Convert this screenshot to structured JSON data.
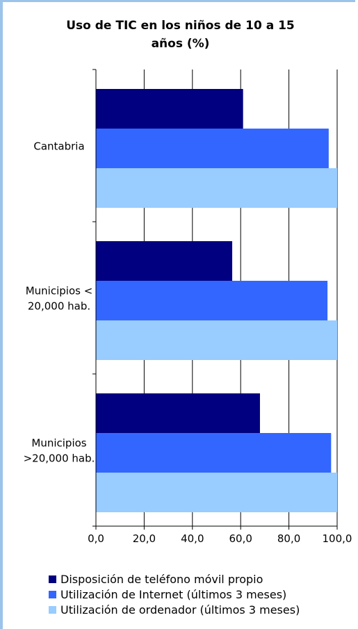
{
  "chart_data": {
    "type": "bar",
    "orientation": "horizontal",
    "title": "Uso de TIC en los niños de 10 a 15 años (%)",
    "title_lines": [
      "Uso de TIC en los niños de 10 a 15",
      "años (%)"
    ],
    "categories": [
      "Cantabria",
      "Municipios < 20,000 hab.",
      "Municipios >20,000 hab."
    ],
    "category_lines": [
      [
        "Cantabria"
      ],
      [
        "Municipios <",
        "20,000 hab."
      ],
      [
        "Municipios",
        ">20,000 hab."
      ]
    ],
    "series": [
      {
        "name": "Disposición de teléfono móvil propio",
        "color": "#000080",
        "values": [
          61.0,
          56.5,
          68.0
        ]
      },
      {
        "name": "Utilización de Internet (últimos 3 meses)",
        "color": "#3366ff",
        "values": [
          96.5,
          96.0,
          97.5
        ]
      },
      {
        "name": "Utilización de ordenador (últimos 3 meses)",
        "color": "#99ccff",
        "values": [
          100.0,
          100.0,
          100.0
        ]
      }
    ],
    "xlim": [
      0,
      100
    ],
    "xticks": [
      "0,0",
      "20,0",
      "40,0",
      "60,0",
      "80,0",
      "100,0"
    ],
    "grid": true,
    "legend_position": "bottom"
  }
}
